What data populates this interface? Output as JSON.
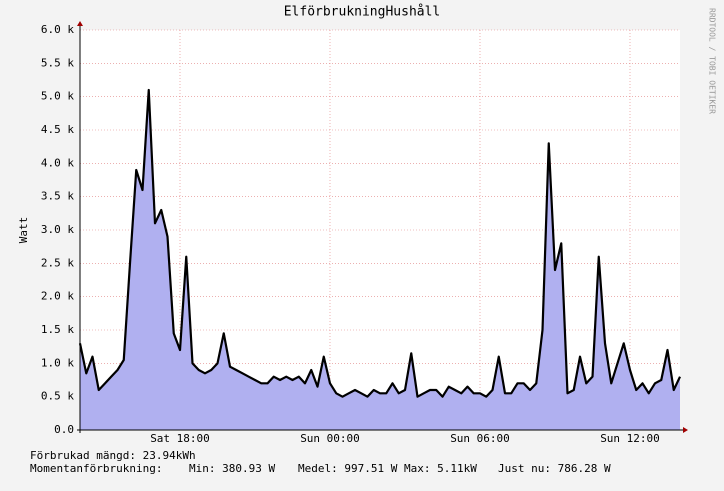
{
  "chart_data": {
    "type": "area",
    "title": "ElförbrukningHushåll",
    "y_label": "Watt",
    "side_text": "RRDTOOL / TOBI OETIKER",
    "footer": [
      "Förbrukad mängd: 23.94kWh",
      "Momentanförbrukning:",
      "Min: 380.93 W",
      "Medel: 997.51 W",
      "Max: 5.11kW",
      "Just nu: 786.28 W"
    ],
    "categories": [
      null,
      null,
      null,
      null,
      null,
      null,
      null,
      null,
      null,
      null,
      null,
      null,
      null,
      null,
      null,
      null,
      "Sat 18:00",
      null,
      null,
      null,
      null,
      null,
      null,
      null,
      null,
      null,
      null,
      null,
      null,
      null,
      null,
      null,
      null,
      null,
      null,
      null,
      null,
      null,
      null,
      null,
      "Sun 00:00",
      null,
      null,
      null,
      null,
      null,
      null,
      null,
      null,
      null,
      null,
      null,
      null,
      null,
      null,
      null,
      null,
      null,
      null,
      null,
      null,
      null,
      null,
      null,
      "Sun 06:00",
      null,
      null,
      null,
      null,
      null,
      null,
      null,
      null,
      null,
      null,
      null,
      null,
      null,
      null,
      null,
      null,
      null,
      null,
      null,
      null,
      null,
      null,
      null,
      "Sun 12:00",
      null,
      null,
      null,
      null,
      null,
      null,
      null,
      null
    ],
    "series": [
      {
        "color": "#b0b0f0",
        "line_color": "#000000",
        "values": [
          1300,
          850,
          1100,
          600,
          700,
          800,
          900,
          1050,
          2500,
          3900,
          3600,
          5100,
          3100,
          3300,
          2900,
          1450,
          1200,
          2600,
          1000,
          900,
          850,
          900,
          1000,
          1450,
          950,
          900,
          850,
          800,
          750,
          700,
          700,
          800,
          750,
          800,
          750,
          800,
          700,
          900,
          650,
          1100,
          700,
          550,
          500,
          550,
          600,
          550,
          500,
          600,
          550,
          550,
          700,
          550,
          600,
          1150,
          500,
          550,
          600,
          600,
          500,
          650,
          600,
          550,
          650,
          550,
          550,
          500,
          600,
          1100,
          550,
          550,
          700,
          700,
          600,
          700,
          1500,
          4300,
          2400,
          2800,
          550,
          600,
          1100,
          700,
          800,
          2600,
          1300,
          700,
          1000,
          1300,
          900,
          600,
          700,
          550,
          700,
          750,
          1200,
          600,
          800
        ]
      }
    ],
    "ylim": [
      0,
      6000
    ],
    "yticks": [
      {
        "value": 0,
        "label": "0.0"
      },
      {
        "value": 500,
        "label": "0.5 k"
      },
      {
        "value": 1000,
        "label": "1.0 k"
      },
      {
        "value": 1500,
        "label": "1.5 k"
      },
      {
        "value": 2000,
        "label": "2.0 k"
      },
      {
        "value": 2500,
        "label": "2.5 k"
      },
      {
        "value": 3000,
        "label": "3.0 k"
      },
      {
        "value": 3500,
        "label": "3.5 k"
      },
      {
        "value": 4000,
        "label": "4.0 k"
      },
      {
        "value": 4500,
        "label": "4.5 k"
      },
      {
        "value": 5000,
        "label": "5.0 k"
      },
      {
        "value": 5500,
        "label": "5.5 k"
      },
      {
        "value": 6000,
        "label": "6.0 k"
      }
    ],
    "grid": true
  }
}
